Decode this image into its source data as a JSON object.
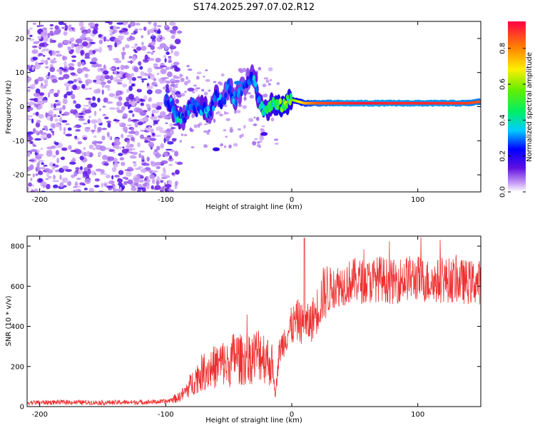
{
  "title": "S174.2025.297.07.02.R12",
  "chart_data": [
    {
      "type": "heatmap",
      "xlabel": "Height of straight line (km)",
      "ylabel": "Frequency (Hz)",
      "xlim": [
        -210,
        150
      ],
      "ylim": [
        -25,
        25
      ],
      "xticks": [
        -200,
        -100,
        0,
        100
      ],
      "yticks": [
        -20,
        -10,
        0,
        10,
        20
      ],
      "colorbar": {
        "label": "Normalized spectral amplitude",
        "range": [
          0,
          0.95
        ],
        "ticks": [
          0.0,
          0.2,
          0.4,
          0.6,
          0.8
        ]
      },
      "noise_region_km": [
        -210,
        -95
      ],
      "signal_track": {
        "x": [
          -100,
          -95,
          -90,
          -85,
          -80,
          -75,
          -70,
          -65,
          -60,
          -55,
          -50,
          -45,
          -40,
          -35,
          -30,
          -25,
          -20,
          -15,
          -10,
          -5,
          0,
          10,
          20,
          40,
          60,
          80,
          100,
          120,
          140,
          150
        ],
        "freq": [
          2,
          0,
          -4,
          -3,
          1,
          -1,
          0,
          -2,
          3,
          1,
          6,
          2,
          5,
          8,
          9,
          0,
          -1,
          1,
          0,
          1,
          2,
          1,
          1,
          1,
          1,
          1,
          1,
          1,
          1,
          1.5
        ],
        "amplitude": [
          0.3,
          0.35,
          0.4,
          0.3,
          0.35,
          0.3,
          0.4,
          0.3,
          0.35,
          0.3,
          0.3,
          0.35,
          0.3,
          0.25,
          0.35,
          0.4,
          0.45,
          0.5,
          0.6,
          0.6,
          0.55,
          0.75,
          0.85,
          0.9,
          0.92,
          0.9,
          0.9,
          0.9,
          0.88,
          0.85
        ]
      }
    },
    {
      "type": "line",
      "xlabel": "Height of straight line (km)",
      "ylabel": "SNR (10 * v/v)",
      "xlim": [
        -210,
        150
      ],
      "ylim": [
        0,
        850
      ],
      "xticks": [
        -200,
        -100,
        0,
        100
      ],
      "yticks": [
        0,
        200,
        400,
        600,
        800
      ],
      "color": "#ee3030",
      "series": [
        {
          "name": "SNR",
          "x": [
            -210,
            -180,
            -150,
            -120,
            -100,
            -90,
            -85,
            -80,
            -75,
            -70,
            -65,
            -60,
            -55,
            -50,
            -45,
            -40,
            -35,
            -30,
            -25,
            -20,
            -15,
            -13,
            -10,
            -5,
            0,
            5,
            10,
            15,
            20,
            25,
            30,
            40,
            50,
            60,
            70,
            80,
            90,
            100,
            110,
            120,
            130,
            140,
            150
          ],
          "y": [
            20,
            22,
            20,
            22,
            25,
            45,
            70,
            110,
            150,
            175,
            190,
            200,
            220,
            200,
            260,
            230,
            240,
            250,
            270,
            240,
            200,
            40,
            270,
            350,
            400,
            430,
            400,
            420,
            480,
            560,
            590,
            610,
            630,
            620,
            640,
            620,
            640,
            640,
            620,
            630,
            630,
            620,
            620
          ]
        }
      ],
      "spike": {
        "x": 10,
        "y": 840
      }
    }
  ]
}
